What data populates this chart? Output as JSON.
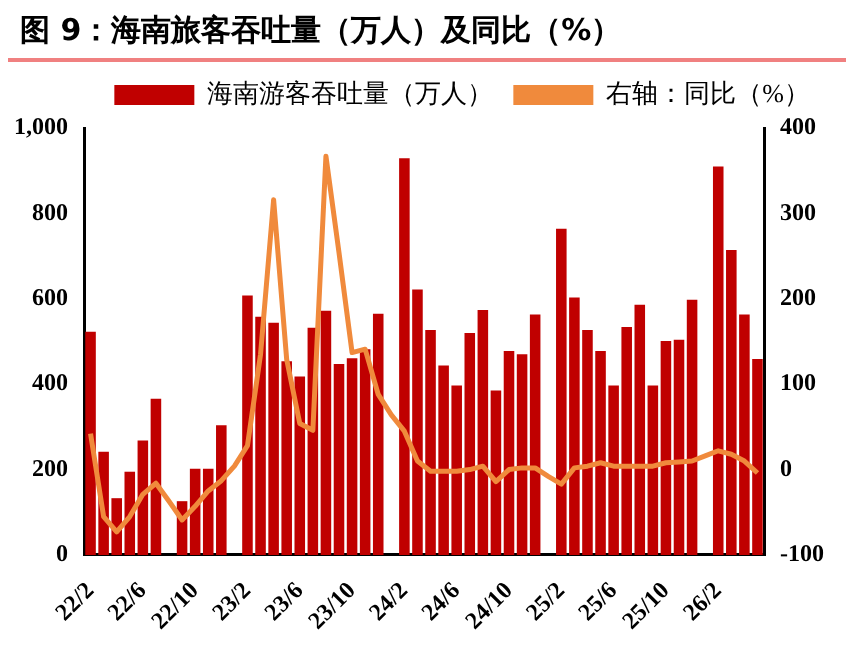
{
  "chart_data": {
    "type": "bar",
    "title": "图 9：海南旅客吞吐量（万人）及同比（%）",
    "categories": [
      "22/2",
      null,
      null,
      null,
      "22/6",
      null,
      null,
      null,
      "22/10",
      null,
      null,
      null,
      "23/2",
      null,
      null,
      null,
      "23/6",
      null,
      null,
      null,
      "23/10",
      null,
      null,
      null,
      "24/2",
      null,
      null,
      null,
      "24/6",
      null,
      null,
      null,
      "24/10",
      null,
      null,
      null,
      "25/2",
      null,
      null,
      null,
      "25/6",
      null,
      null,
      null,
      "25/10",
      null,
      null,
      null,
      "26/2",
      null,
      null,
      null
    ],
    "series": [
      {
        "name": "海南游客吞吐量（万人）",
        "color": "#c00000",
        "values": [
          523,
          242,
          133,
          195,
          268,
          366,
          null,
          126,
          202,
          202,
          304,
          null,
          608,
          558,
          544,
          454,
          418,
          532,
          572,
          447,
          461,
          482,
          565,
          null,
          929,
          622,
          527,
          444,
          397,
          520,
          574,
          385,
          478,
          470,
          563,
          null,
          764,
          603,
          527,
          478,
          397,
          534,
          586,
          397,
          501,
          504,
          598,
          null,
          910,
          714,
          563,
          459
        ]
      },
      {
        "name": "右轴：同比（%）",
        "type": "line",
        "axis": "y2",
        "color": "#f08a3c",
        "values": [
          42,
          -55,
          -73,
          -55,
          -29,
          -16,
          -37,
          -59,
          -43,
          -25,
          -13,
          4,
          28,
          135,
          316,
          129,
          54,
          46,
          367,
          254,
          137,
          141,
          88,
          64,
          45,
          10,
          -2,
          -2,
          -2,
          0,
          4,
          -14,
          0,
          2,
          2,
          -8,
          -17,
          2,
          4,
          8,
          4,
          4,
          4,
          4,
          8,
          9,
          10,
          16,
          22,
          18,
          10,
          -4
        ]
      }
    ],
    "ylim": [
      0,
      1000
    ],
    "yticks": [
      0,
      200,
      400,
      600,
      800,
      {
        "value": 1000,
        "label": "1,000"
      }
    ],
    "y2lim": [
      -100,
      400
    ],
    "y2ticks": [
      -100,
      0,
      100,
      200,
      300,
      400
    ],
    "grid": false,
    "legend": "top",
    "marker": "none",
    "line_style": "solid"
  }
}
